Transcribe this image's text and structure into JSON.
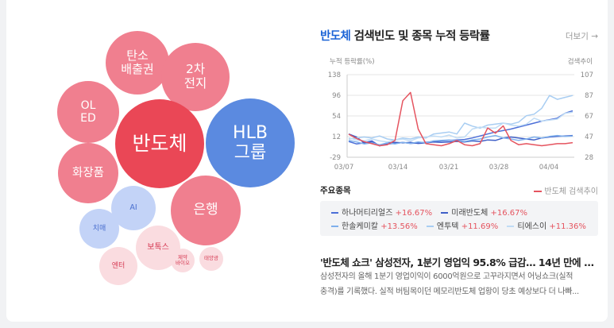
{
  "bubbles": [
    {
      "label": "탄소\n배출권",
      "color": "#f07f8f",
      "text_color": "#ffffff"
    },
    {
      "label": "2차\n전지",
      "color": "#f07f8f",
      "text_color": "#ffffff"
    },
    {
      "label": "OL\nED",
      "color": "#f07f8f",
      "text_color": "#ffffff"
    },
    {
      "label": "반도체",
      "color": "#ea4756",
      "text_color": "#ffffff"
    },
    {
      "label": "HLB\n그룹",
      "color": "#5b8ae0",
      "text_color": "#ffffff"
    },
    {
      "label": "화장품",
      "color": "#f07f8f",
      "text_color": "#ffffff"
    },
    {
      "label": "AI",
      "color": "#c3d3f7",
      "text_color": "#4a6fcf"
    },
    {
      "label": "은행",
      "color": "#f07f8f",
      "text_color": "#ffffff"
    },
    {
      "label": "치매",
      "color": "#c3d3f7",
      "text_color": "#4a6fcf"
    },
    {
      "label": "보톡스",
      "color": "#fadce0",
      "text_color": "#d63a53"
    },
    {
      "label": "제약\n바이오",
      "color": "#fadce0",
      "text_color": "#d63a53"
    },
    {
      "label": "태양광",
      "color": "#fadce0",
      "text_color": "#d63a53"
    },
    {
      "label": "엔터",
      "color": "#fadce0",
      "text_color": "#d63a53"
    }
  ],
  "panel": {
    "keyword": "반도체",
    "title_rest": " 검색빈도 및 종목 누적 등락률",
    "more": "더보기 →"
  },
  "chart_data": {
    "type": "line",
    "ylabel_left": "누적 등락률(%)",
    "ylabel_right": "검색추이",
    "y_ticks_left": [
      "138",
      "96",
      "54",
      "12",
      "-29"
    ],
    "y_ticks_right": [
      "107",
      "87",
      "67",
      "47",
      "28"
    ],
    "ylim_left": [
      -29,
      138
    ],
    "ylim_right": [
      28,
      107
    ],
    "x_ticks": [
      "03/07",
      "03/14",
      "03/21",
      "03/28",
      "04/04"
    ],
    "grid": "horizontal",
    "series": [
      {
        "name": "하나머티리얼즈",
        "color": "#4c6fd8",
        "axis": "left",
        "values": [
          3,
          -2,
          0,
          4,
          -6,
          -2,
          -1,
          1,
          -1,
          0,
          1,
          3,
          4,
          5,
          6,
          7,
          10,
          14,
          18,
          22,
          25,
          28,
          32,
          36,
          40,
          44,
          47,
          50,
          60,
          65
        ]
      },
      {
        "name": "미래반도체",
        "color": "#3f5fc7",
        "axis": "left",
        "values": [
          18,
          12,
          0,
          2,
          -5,
          0,
          1,
          0,
          1,
          -1,
          0,
          2,
          1,
          2,
          3,
          2,
          4,
          3,
          6,
          5,
          10,
          12,
          10,
          8,
          6,
          10,
          12,
          13,
          14,
          15
        ]
      },
      {
        "name": "한솔케미칼",
        "color": "#7fb0ec",
        "axis": "left",
        "values": [
          5,
          2,
          -2,
          0,
          -4,
          0,
          -2,
          1,
          -1,
          2,
          0,
          4,
          5,
          6,
          4,
          3,
          6,
          8,
          12,
          15,
          10,
          8,
          5,
          8,
          12,
          10,
          13,
          15,
          13,
          14
        ]
      },
      {
        "name": "엔투텍",
        "color": "#a8cdf2",
        "axis": "left",
        "values": [
          8,
          10,
          12,
          10,
          14,
          8,
          6,
          10,
          8,
          12,
          10,
          18,
          20,
          22,
          18,
          40,
          34,
          30,
          36,
          38,
          40,
          38,
          42,
          55,
          58,
          70,
          96,
          88,
          92,
          96
        ]
      },
      {
        "name": "티에스이",
        "color": "#c0dcf5",
        "axis": "left",
        "values": [
          10,
          6,
          4,
          8,
          4,
          2,
          6,
          8,
          4,
          10,
          12,
          14,
          12,
          16,
          10,
          12,
          28,
          32,
          30,
          30,
          40,
          36,
          34,
          38,
          50,
          44,
          46,
          48,
          60,
          62
        ]
      },
      {
        "name": "반도체 검색추이",
        "color": "#e5545f",
        "axis": "right",
        "values": [
          50,
          46,
          43,
          41,
          39,
          40,
          44,
          82,
          90,
          55,
          41,
          40,
          39,
          41,
          44,
          40,
          39,
          41,
          56,
          51,
          58,
          44,
          40,
          41,
          40,
          39,
          40,
          41,
          41,
          42
        ]
      }
    ]
  },
  "section": {
    "heading": "주요종목",
    "search_legend": "반도체 검색추이"
  },
  "stocks": [
    {
      "name": "하나머티리얼즈",
      "change": "+16.67%",
      "color": "#4c6fd8"
    },
    {
      "name": "미래반도체",
      "change": "+16.67%",
      "color": "#3f5fc7"
    },
    {
      "name": "한솔케미칼",
      "change": "+13.56%",
      "color": "#7fb0ec"
    },
    {
      "name": "엔투텍",
      "change": "+11.69%",
      "color": "#a8cdf2"
    },
    {
      "name": "티에스이",
      "change": "+11.36%",
      "color": "#c0dcf5"
    }
  ],
  "news": {
    "title": "'반도체 쇼크' 삼성전자, 1분기 영업익 95.8% 급감… 14년 만에 ...",
    "line1": "삼성전자의 올해 1분기 영업이익이 6000억원으로 고꾸라지면서 어닝쇼크(실적",
    "line2": "충격)를 기록했다. 실적 버팀목이던 메모리반도체 업황이 당초 예상보다 더 나빠..."
  }
}
